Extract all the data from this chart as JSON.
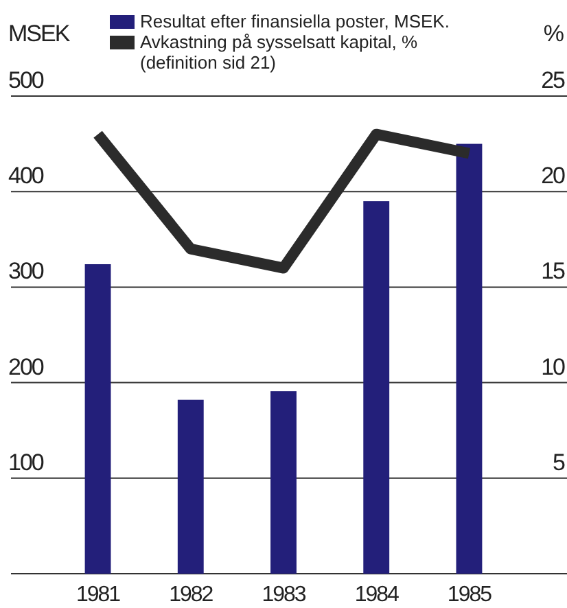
{
  "chart_data": {
    "type": "bar",
    "categories": [
      "1981",
      "1982",
      "1983",
      "1984",
      "1985"
    ],
    "ylabel": "MSEK",
    "y2label": "%",
    "ylim": [
      0,
      500
    ],
    "yticks": [
      {
        "value": 0,
        "label": null
      },
      100,
      200,
      300,
      400,
      500
    ],
    "y2lim": [
      0,
      25
    ],
    "y2ticks": [
      5,
      10,
      15,
      20,
      25
    ],
    "grid": "y",
    "legend": "top",
    "series": [
      {
        "name": "Resultat efter finansiella poster, MSEK.",
        "color": "#231f7a",
        "values": [
          324,
          182,
          191,
          390,
          450
        ]
      },
      {
        "name": "Avkastning på sysselsatt kapital, %\n(definition sid 21)",
        "type": "line",
        "axis": "y2",
        "color": "#2b2b2b",
        "values": [
          23,
          17,
          16,
          23,
          22
        ]
      }
    ]
  }
}
